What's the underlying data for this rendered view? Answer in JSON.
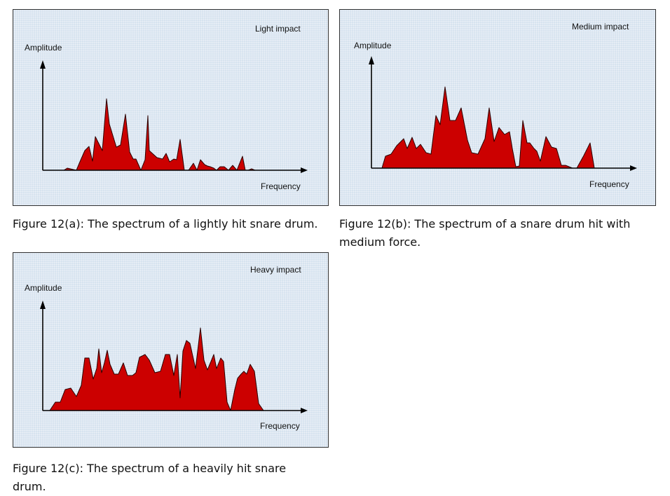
{
  "figures": [
    {
      "id": "a",
      "caption": "Figure 12(a): The spectrum of a lightly hit snare drum.",
      "chart_data": {
        "type": "area",
        "title": "Light impact",
        "xlabel": "Frequency",
        "ylabel": "Amplitude",
        "fill_color": "#cc0000",
        "x": [
          0,
          30,
          35,
          48,
          53,
          60,
          66,
          71,
          75,
          85,
          91,
          95,
          105,
          111,
          118,
          124,
          129,
          133,
          140,
          146,
          150,
          152,
          163,
          171,
          176,
          181,
          187,
          191,
          196,
          202,
          208,
          215,
          220,
          225,
          231,
          235,
          239,
          244,
          248,
          253,
          259,
          265,
          271,
          277,
          281,
          285,
          289,
          293,
          298,
          303,
          308,
          315,
          325
        ],
        "y": [
          0,
          0,
          3,
          0,
          12,
          28,
          34,
          13,
          48,
          28,
          102,
          66,
          33,
          36,
          80,
          26,
          16,
          16,
          0,
          15,
          78,
          28,
          18,
          16,
          24,
          12,
          16,
          15,
          44,
          0,
          0,
          10,
          0,
          15,
          8,
          6,
          5,
          3,
          0,
          5,
          5,
          0,
          7,
          0,
          10,
          20,
          0,
          0,
          2,
          0,
          0,
          0,
          0
        ]
      }
    },
    {
      "id": "b",
      "caption": "Figure 12(b): The spectrum of a snare drum hit with medium force.",
      "chart_data": {
        "type": "area",
        "title": "Medium impact",
        "xlabel": "Frequency",
        "ylabel": "Amplitude",
        "fill_color": "#cc0000",
        "x": [
          0,
          15,
          20,
          28,
          36,
          46,
          51,
          58,
          64,
          70,
          78,
          85,
          92,
          98,
          105,
          112,
          120,
          128,
          137,
          143,
          152,
          162,
          168,
          175,
          182,
          190,
          197,
          201,
          206,
          211,
          216,
          222,
          226,
          232,
          236,
          241,
          249,
          257,
          264,
          271,
          277,
          287,
          293,
          303,
          312,
          318,
          328
        ],
        "y": [
          0,
          0,
          17,
          20,
          32,
          42,
          28,
          44,
          28,
          34,
          22,
          20,
          75,
          62,
          116,
          68,
          68,
          86,
          40,
          22,
          20,
          42,
          86,
          38,
          58,
          48,
          52,
          28,
          2,
          3,
          68,
          36,
          36,
          28,
          24,
          10,
          45,
          30,
          28,
          4,
          4,
          0,
          0,
          18,
          36,
          0,
          0
        ]
      }
    },
    {
      "id": "c",
      "caption": "Figure 12(c): The spectrum of a heavily hit snare drum.",
      "chart_data": {
        "type": "area",
        "title": "Heavy impact",
        "xlabel": "Frequency",
        "ylabel": "Amplitude",
        "fill_color": "#cc0000",
        "x": [
          0,
          10,
          18,
          25,
          32,
          40,
          48,
          55,
          60,
          66,
          72,
          77,
          80,
          84,
          88,
          92,
          96,
          102,
          108,
          115,
          121,
          128,
          133,
          138,
          146,
          152,
          160,
          168,
          175,
          181,
          187,
          192,
          196,
          200,
          205,
          210,
          218,
          225,
          230,
          235,
          240,
          244,
          248,
          254,
          258,
          263,
          268,
          274,
          278,
          283,
          287,
          291,
          296,
          302,
          308,
          315,
          325,
          340
        ],
        "y": [
          0,
          0,
          12,
          12,
          30,
          32,
          20,
          36,
          75,
          75,
          45,
          60,
          88,
          54,
          68,
          86,
          66,
          52,
          52,
          68,
          50,
          50,
          54,
          76,
          80,
          72,
          54,
          56,
          80,
          80,
          50,
          80,
          18,
          85,
          100,
          96,
          60,
          118,
          72,
          58,
          70,
          80,
          60,
          75,
          70,
          12,
          0,
          30,
          46,
          52,
          56,
          52,
          66,
          56,
          10,
          0,
          0,
          0
        ]
      }
    }
  ]
}
